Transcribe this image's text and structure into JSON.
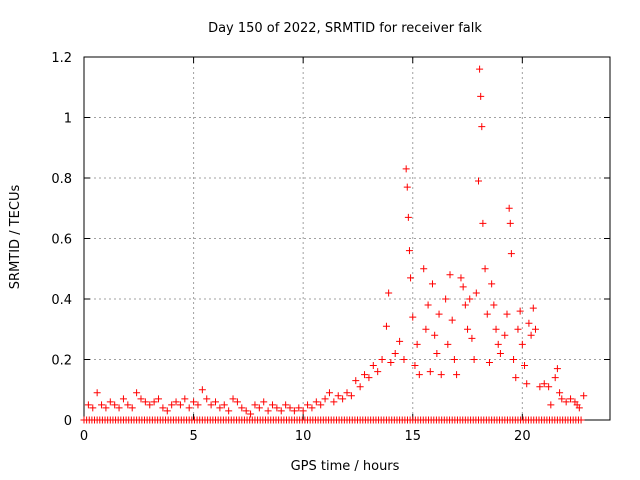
{
  "chart_data": {
    "type": "scatter",
    "title": "Day 150 of 2022, SRMTID for receiver falk",
    "xlabel": "GPS time / hours",
    "ylabel": "SRMTID / TECUs",
    "xlim": [
      0,
      24
    ],
    "ylim": [
      0,
      1.2
    ],
    "xticks": [
      0,
      5,
      10,
      15,
      20
    ],
    "yticks": [
      0,
      0.2,
      0.4,
      0.6,
      0.8,
      1,
      1.2
    ],
    "ytick_labels": [
      "0",
      "0.2",
      "0.4",
      "0.6",
      "0.8",
      "1",
      "1.2"
    ],
    "grid": true,
    "marker": "+",
    "series": [
      {
        "name": "SRMTID",
        "color": "#ff0000",
        "points": [
          [
            0.2,
            0.05
          ],
          [
            0.4,
            0.04
          ],
          [
            0.6,
            0.09
          ],
          [
            0.8,
            0.05
          ],
          [
            1.0,
            0.04
          ],
          [
            1.2,
            0.06
          ],
          [
            1.4,
            0.05
          ],
          [
            1.6,
            0.04
          ],
          [
            1.8,
            0.07
          ],
          [
            2.0,
            0.05
          ],
          [
            2.2,
            0.04
          ],
          [
            2.4,
            0.09
          ],
          [
            2.6,
            0.07
          ],
          [
            2.8,
            0.06
          ],
          [
            3.0,
            0.05
          ],
          [
            3.2,
            0.06
          ],
          [
            3.4,
            0.07
          ],
          [
            3.6,
            0.04
          ],
          [
            3.8,
            0.03
          ],
          [
            4.0,
            0.05
          ],
          [
            4.2,
            0.06
          ],
          [
            4.4,
            0.05
          ],
          [
            4.6,
            0.07
          ],
          [
            4.8,
            0.04
          ],
          [
            5.0,
            0.06
          ],
          [
            5.2,
            0.05
          ],
          [
            5.4,
            0.1
          ],
          [
            5.6,
            0.07
          ],
          [
            5.8,
            0.05
          ],
          [
            6.0,
            0.06
          ],
          [
            6.2,
            0.04
          ],
          [
            6.4,
            0.05
          ],
          [
            6.6,
            0.03
          ],
          [
            6.8,
            0.07
          ],
          [
            7.0,
            0.06
          ],
          [
            7.2,
            0.04
          ],
          [
            7.4,
            0.03
          ],
          [
            7.6,
            0.02
          ],
          [
            7.8,
            0.05
          ],
          [
            8.0,
            0.04
          ],
          [
            8.2,
            0.06
          ],
          [
            8.4,
            0.03
          ],
          [
            8.6,
            0.05
          ],
          [
            8.8,
            0.04
          ],
          [
            9.0,
            0.03
          ],
          [
            9.2,
            0.05
          ],
          [
            9.4,
            0.04
          ],
          [
            9.6,
            0.03
          ],
          [
            9.8,
            0.04
          ],
          [
            10.0,
            0.03
          ],
          [
            10.2,
            0.05
          ],
          [
            10.4,
            0.04
          ],
          [
            10.6,
            0.06
          ],
          [
            10.8,
            0.05
          ],
          [
            11.0,
            0.07
          ],
          [
            11.2,
            0.09
          ],
          [
            11.4,
            0.06
          ],
          [
            11.6,
            0.08
          ],
          [
            11.8,
            0.07
          ],
          [
            12.0,
            0.09
          ],
          [
            12.2,
            0.08
          ],
          [
            12.4,
            0.13
          ],
          [
            12.6,
            0.11
          ],
          [
            12.8,
            0.15
          ],
          [
            13.0,
            0.14
          ],
          [
            13.2,
            0.18
          ],
          [
            13.4,
            0.16
          ],
          [
            13.6,
            0.2
          ],
          [
            13.8,
            0.31
          ],
          [
            13.9,
            0.42
          ],
          [
            14.0,
            0.19
          ],
          [
            14.2,
            0.22
          ],
          [
            14.4,
            0.26
          ],
          [
            14.6,
            0.2
          ],
          [
            14.7,
            0.83
          ],
          [
            14.75,
            0.77
          ],
          [
            14.8,
            0.67
          ],
          [
            14.85,
            0.56
          ],
          [
            14.9,
            0.47
          ],
          [
            15.0,
            0.34
          ],
          [
            15.1,
            0.18
          ],
          [
            15.2,
            0.25
          ],
          [
            15.3,
            0.15
          ],
          [
            15.5,
            0.5
          ],
          [
            15.6,
            0.3
          ],
          [
            15.7,
            0.38
          ],
          [
            15.8,
            0.16
          ],
          [
            15.9,
            0.45
          ],
          [
            16.0,
            0.28
          ],
          [
            16.1,
            0.22
          ],
          [
            16.2,
            0.35
          ],
          [
            16.3,
            0.15
          ],
          [
            16.5,
            0.4
          ],
          [
            16.6,
            0.25
          ],
          [
            16.7,
            0.48
          ],
          [
            16.8,
            0.33
          ],
          [
            16.9,
            0.2
          ],
          [
            17.0,
            0.15
          ],
          [
            17.2,
            0.47
          ],
          [
            17.3,
            0.44
          ],
          [
            17.4,
            0.38
          ],
          [
            17.5,
            0.3
          ],
          [
            17.6,
            0.4
          ],
          [
            17.7,
            0.27
          ],
          [
            17.8,
            0.2
          ],
          [
            17.9,
            0.42
          ],
          [
            18.0,
            0.79
          ],
          [
            18.05,
            1.16
          ],
          [
            18.1,
            1.07
          ],
          [
            18.15,
            0.97
          ],
          [
            18.2,
            0.65
          ],
          [
            18.3,
            0.5
          ],
          [
            18.4,
            0.35
          ],
          [
            18.5,
            0.19
          ],
          [
            18.6,
            0.45
          ],
          [
            18.7,
            0.38
          ],
          [
            18.8,
            0.3
          ],
          [
            18.9,
            0.25
          ],
          [
            19.0,
            0.22
          ],
          [
            19.2,
            0.28
          ],
          [
            19.3,
            0.35
          ],
          [
            19.4,
            0.7
          ],
          [
            19.45,
            0.65
          ],
          [
            19.5,
            0.55
          ],
          [
            19.6,
            0.2
          ],
          [
            19.7,
            0.14
          ],
          [
            19.8,
            0.3
          ],
          [
            19.9,
            0.36
          ],
          [
            20.0,
            0.25
          ],
          [
            20.1,
            0.18
          ],
          [
            20.2,
            0.12
          ],
          [
            20.3,
            0.32
          ],
          [
            20.4,
            0.28
          ],
          [
            20.5,
            0.37
          ],
          [
            20.6,
            0.3
          ],
          [
            20.8,
            0.11
          ],
          [
            21.0,
            0.12
          ],
          [
            21.2,
            0.11
          ],
          [
            21.3,
            0.05
          ],
          [
            21.5,
            0.14
          ],
          [
            21.6,
            0.17
          ],
          [
            21.7,
            0.09
          ],
          [
            21.8,
            0.07
          ],
          [
            22.0,
            0.06
          ],
          [
            22.2,
            0.07
          ],
          [
            22.4,
            0.06
          ],
          [
            22.5,
            0.05
          ],
          [
            22.6,
            0.04
          ],
          [
            22.8,
            0.08
          ]
        ],
        "zero_baseline": {
          "from": 0.0,
          "to": 22.7,
          "value": 0,
          "step": 0.12
        }
      }
    ]
  }
}
